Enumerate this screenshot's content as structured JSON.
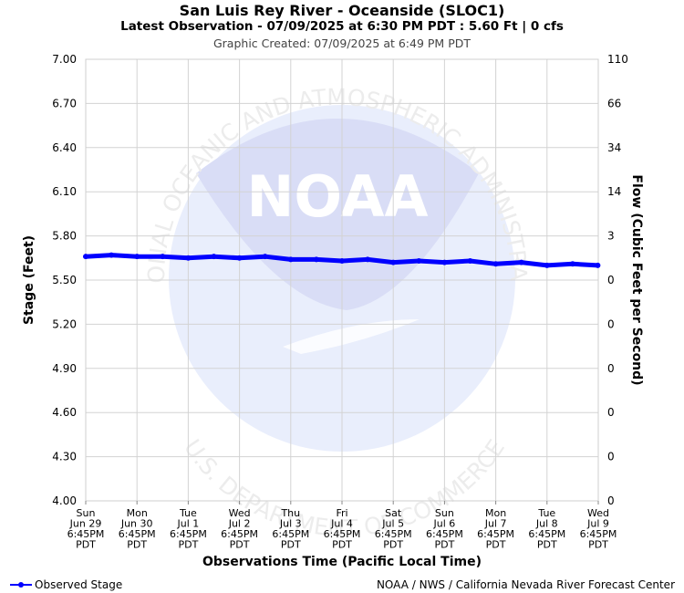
{
  "header": {
    "title": "San Luis Rey River - Oceanside (SLOC1)",
    "latest": "Latest Observation - 07/09/2025 at 6:30 PM PDT : 5.60 Ft | 0 cfs",
    "created": "Graphic Created: 07/09/2025 at 6:49 PM PDT"
  },
  "footer": {
    "legend_label": "Observed Stage",
    "credit": "NOAA / NWS / California Nevada River Forecast Center"
  },
  "watermark": {
    "logo_text": "NOAA",
    "ring_top": "NATIONAL OCEANIC AND ATMOSPHERIC ADMINISTRATION",
    "ring_bottom": "U.S. DEPARTMENT OF COMMERCE"
  },
  "colors": {
    "series": "#0000ff",
    "grid": "#d3d3d3",
    "watermark": "#e8ecfa"
  },
  "chart_data": {
    "type": "line",
    "xlabel": "Observations Time (Pacific Local Time)",
    "ylabel": "Stage (Feet)",
    "y2label": "Flow (Cubic Feet per Second)",
    "ylim": [
      4.0,
      7.0
    ],
    "y_ticks": [
      "4.00",
      "4.30",
      "4.60",
      "4.90",
      "5.20",
      "5.50",
      "5.80",
      "6.10",
      "6.40",
      "6.70",
      "7.00"
    ],
    "y2_ticks": [
      "0",
      "0",
      "0",
      "0",
      "0",
      "0",
      "3",
      "14",
      "34",
      "66",
      "110"
    ],
    "x_ticks": [
      [
        "Sun",
        "Jun 29",
        "6:45PM",
        "PDT"
      ],
      [
        "Mon",
        "Jun 30",
        "6:45PM",
        "PDT"
      ],
      [
        "Tue",
        "Jul 1",
        "6:45PM",
        "PDT"
      ],
      [
        "Wed",
        "Jul 2",
        "6:45PM",
        "PDT"
      ],
      [
        "Thu",
        "Jul 3",
        "6:45PM",
        "PDT"
      ],
      [
        "Fri",
        "Jul 4",
        "6:45PM",
        "PDT"
      ],
      [
        "Sat",
        "Jul 5",
        "6:45PM",
        "PDT"
      ],
      [
        "Sun",
        "Jul 6",
        "6:45PM",
        "PDT"
      ],
      [
        "Mon",
        "Jul 7",
        "6:45PM",
        "PDT"
      ],
      [
        "Tue",
        "Jul 8",
        "6:45PM",
        "PDT"
      ],
      [
        "Wed",
        "Jul 9",
        "6:45PM",
        "PDT"
      ]
    ],
    "grid": true,
    "legend_position": "bottom-left",
    "series": [
      {
        "name": "Observed Stage",
        "x": [
          "2025-06-29 18:45",
          "2025-06-30 06:45",
          "2025-06-30 18:45",
          "2025-07-01 06:45",
          "2025-07-01 18:45",
          "2025-07-02 06:45",
          "2025-07-02 18:45",
          "2025-07-03 06:45",
          "2025-07-03 18:45",
          "2025-07-04 06:45",
          "2025-07-04 18:45",
          "2025-07-05 06:45",
          "2025-07-05 18:45",
          "2025-07-06 06:45",
          "2025-07-06 18:45",
          "2025-07-07 06:45",
          "2025-07-07 18:45",
          "2025-07-08 06:45",
          "2025-07-08 18:45",
          "2025-07-09 06:45",
          "2025-07-09 18:30"
        ],
        "y": [
          5.66,
          5.67,
          5.66,
          5.66,
          5.65,
          5.66,
          5.65,
          5.66,
          5.64,
          5.64,
          5.63,
          5.64,
          5.62,
          5.63,
          5.62,
          5.63,
          5.61,
          5.62,
          5.6,
          5.61,
          5.6
        ]
      }
    ]
  }
}
